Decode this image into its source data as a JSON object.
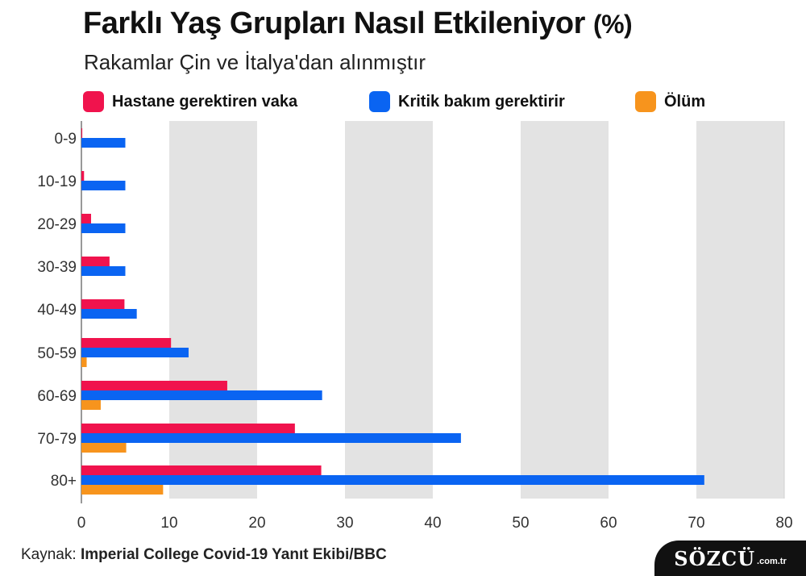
{
  "chart_data": {
    "type": "bar",
    "orientation": "horizontal",
    "title": "Farklı Yaş Grupları Nasıl Etkileniyor",
    "title_unit": "(%)",
    "subtitle": "Rakamlar Çin ve İtalya'dan alınmıştır",
    "categories": [
      "0-9",
      "10-19",
      "20-29",
      "30-39",
      "40-49",
      "50-59",
      "60-69",
      "70-79",
      "80+"
    ],
    "series": [
      {
        "name": "Hastane gerektiren vaka",
        "color": "#f0134d",
        "values": [
          0.1,
          0.3,
          1.1,
          3.2,
          4.9,
          10.2,
          16.6,
          24.3,
          27.3
        ]
      },
      {
        "name": "Kritik bakım gerektirir",
        "color": "#0a64f2",
        "values": [
          5.0,
          5.0,
          5.0,
          5.0,
          6.3,
          12.2,
          27.4,
          43.2,
          70.9
        ]
      },
      {
        "name": "Ölüm",
        "color": "#f7941d",
        "values": [
          0.0,
          0.0,
          0.0,
          0.0,
          0.0,
          0.6,
          2.2,
          5.1,
          9.3
        ]
      }
    ],
    "x_ticks": [
      "0",
      "10",
      "20",
      "30",
      "40",
      "50",
      "60",
      "70",
      "80"
    ],
    "xlim": [
      0,
      80
    ],
    "background_bands": "alternating grey columns",
    "legend_position": "top"
  },
  "footer": {
    "source_label": "Kaynak:",
    "source_value": "Imperial College Covid-19 Yanıt Ekibi/BBC"
  },
  "logo": {
    "text": "SÖZCÜ",
    "suffix": ".com.tr"
  },
  "colors": {
    "band": "#e3e3e3",
    "gridline": "#cfcfcf",
    "logo_bg": "#111111"
  }
}
